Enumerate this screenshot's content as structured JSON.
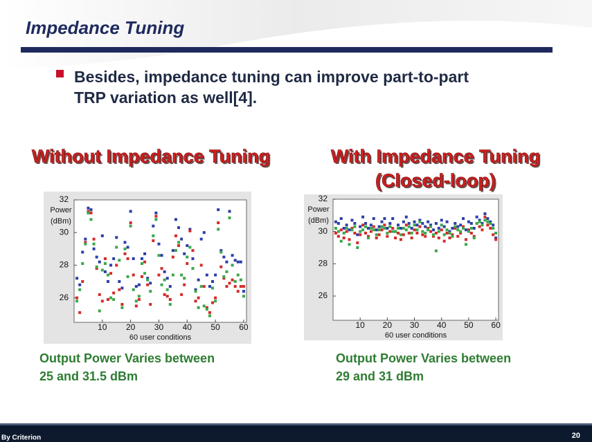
{
  "header": {
    "title": "Impedance Tuning"
  },
  "bullet": [
    "Besides, impedance tuning can improve part-to-part",
    "TRP variation as well[4]."
  ],
  "panels": [
    {
      "heading": [
        "Without Impedance Tuning"
      ],
      "caption": [
        "Output Power Varies between",
        "25 and 31.5 dBm"
      ]
    },
    {
      "heading": [
        "With Impedance Tuning",
        "(Closed-loop)"
      ],
      "caption": [
        "Output Power Varies between",
        "29 and 31 dBm"
      ]
    }
  ],
  "chart_data": [
    {
      "type": "scatter",
      "ylabel": [
        "Power",
        "(dBm)"
      ],
      "xlabel": "60 user conditions",
      "xlim": [
        0,
        61
      ],
      "xticks": [
        10,
        20,
        30,
        40,
        50,
        60
      ],
      "ylim": [
        24.5,
        32
      ],
      "yticks": [
        26,
        28,
        30,
        32
      ],
      "x": [
        1,
        2,
        3,
        4,
        5,
        6,
        7,
        8,
        9,
        10,
        11,
        12,
        13,
        14,
        15,
        16,
        17,
        18,
        19,
        20,
        21,
        22,
        23,
        24,
        25,
        26,
        27,
        28,
        29,
        30,
        31,
        32,
        33,
        34,
        35,
        36,
        37,
        38,
        39,
        40,
        41,
        42,
        43,
        44,
        45,
        46,
        47,
        48,
        49,
        50,
        51,
        52,
        53,
        54,
        55,
        56,
        57,
        58,
        59,
        60
      ],
      "series": [
        {
          "color": "#2b3fa8",
          "values": [
            27.2,
            26.8,
            28.8,
            29.6,
            31.5,
            31.4,
            29.0,
            28.5,
            28.2,
            29.8,
            27.6,
            27.0,
            28.0,
            28.4,
            29.7,
            27.0,
            26.6,
            29.4,
            29.1,
            31.3,
            28.4,
            26.7,
            26.8,
            28.4,
            28.7,
            27.2,
            26.9,
            30.4,
            31.2,
            29.3,
            28.6,
            27.6,
            27.2,
            26.7,
            28.9,
            30.8,
            30.3,
            29.6,
            28.7,
            29.2,
            30.2,
            28.4,
            26.5,
            27.1,
            29.6,
            30.0,
            27.4,
            26.7,
            27.0,
            27.4,
            31.4,
            28.9,
            28.5,
            28.2,
            31.3,
            28.6,
            28.3,
            28.2,
            28.2,
            26.4
          ]
        },
        {
          "color": "#d42a2a",
          "values": [
            26.0,
            25.1,
            27.0,
            29.4,
            31.3,
            31.2,
            29.6,
            27.8,
            26.2,
            25.8,
            28.4,
            25.9,
            27.5,
            26.3,
            28.0,
            26.5,
            25.6,
            28.7,
            28.4,
            30.6,
            27.4,
            25.5,
            25.9,
            27.3,
            28.2,
            26.8,
            25.6,
            29.5,
            31.0,
            27.4,
            27.8,
            26.2,
            26.1,
            25.9,
            28.5,
            29.8,
            29.2,
            26.2,
            26.8,
            28.1,
            30.1,
            28.9,
            25.8,
            26.0,
            28.0,
            26.7,
            25.4,
            25.1,
            25.7,
            26.0,
            30.6,
            27.9,
            27.2,
            26.7,
            26.9,
            27.1,
            26.7,
            26.4,
            26.7,
            26.7
          ]
        },
        {
          "color": "#3aa84a",
          "values": [
            25.8,
            26.5,
            28.1,
            29.3,
            31.2,
            30.8,
            29.3,
            27.9,
            25.2,
            27.7,
            28.1,
            27.4,
            26.0,
            25.9,
            29.1,
            28.3,
            25.4,
            29.0,
            27.3,
            30.4,
            26.5,
            25.8,
            26.1,
            28.1,
            27.5,
            27.1,
            26.4,
            29.8,
            30.8,
            28.6,
            26.8,
            27.1,
            26.5,
            25.6,
            27.4,
            28.9,
            29.4,
            27.4,
            27.2,
            28.5,
            29.1,
            27.8,
            26.4,
            25.4,
            26.7,
            25.5,
            25.3,
            24.9,
            26.6,
            25.8,
            30.2,
            28.8,
            27.3,
            27.6,
            30.9,
            28.0,
            27.0,
            27.4,
            27.1,
            26.1
          ]
        }
      ]
    },
    {
      "type": "scatter",
      "ylabel": [
        "Power",
        "(dBm)"
      ],
      "xlabel": "60 user conditions",
      "xlim": [
        0,
        61
      ],
      "xticks": [
        10,
        20,
        30,
        40,
        50,
        60
      ],
      "ylim": [
        24.5,
        32
      ],
      "yticks": [
        26,
        28,
        30,
        32
      ],
      "x": [
        1,
        2,
        3,
        4,
        5,
        6,
        7,
        8,
        9,
        10,
        11,
        12,
        13,
        14,
        15,
        16,
        17,
        18,
        19,
        20,
        21,
        22,
        23,
        24,
        25,
        26,
        27,
        28,
        29,
        30,
        31,
        32,
        33,
        34,
        35,
        36,
        37,
        38,
        39,
        40,
        41,
        42,
        43,
        44,
        45,
        46,
        47,
        48,
        49,
        50,
        51,
        52,
        53,
        54,
        55,
        56,
        57,
        58,
        59,
        60
      ],
      "series": [
        {
          "color": "#2b3fa8",
          "values": [
            30.6,
            30.5,
            30.8,
            30.2,
            30.4,
            30.1,
            30.7,
            30.5,
            29.8,
            30.3,
            30.9,
            30.5,
            30.2,
            30.4,
            30.8,
            30.1,
            30.3,
            30.6,
            30.8,
            30.2,
            30.5,
            30.8,
            30.0,
            30.4,
            30.2,
            30.6,
            30.9,
            30.5,
            30.2,
            30.6,
            30.4,
            30.7,
            30.5,
            30.3,
            30.6,
            30.4,
            30.1,
            30.5,
            30.2,
            30.7,
            30.3,
            30.6,
            30.0,
            30.2,
            30.5,
            30.3,
            30.4,
            30.8,
            30.1,
            30.6,
            30.5,
            30.2,
            30.9,
            30.7,
            30.5,
            31.1,
            30.8,
            30.6,
            30.4,
            29.6
          ]
        },
        {
          "color": "#d42a2a",
          "values": [
            29.9,
            29.7,
            30.1,
            29.6,
            30.0,
            29.5,
            30.2,
            29.9,
            29.3,
            29.8,
            30.4,
            29.9,
            29.7,
            30.0,
            30.3,
            29.6,
            29.8,
            30.1,
            30.4,
            29.7,
            30.0,
            30.2,
            29.6,
            29.9,
            29.5,
            29.8,
            30.4,
            29.9,
            29.6,
            30.1,
            29.9,
            30.3,
            29.8,
            29.7,
            30.2,
            30.0,
            29.7,
            29.9,
            29.6,
            30.1,
            29.4,
            29.9,
            29.6,
            29.8,
            30.2,
            29.7,
            29.9,
            30.3,
            29.5,
            30.1,
            29.9,
            29.7,
            30.5,
            30.3,
            30.1,
            30.9,
            30.4,
            30.2,
            29.8,
            29.5
          ]
        },
        {
          "color": "#3aa84a",
          "values": [
            30.2,
            30.0,
            29.4,
            29.9,
            30.2,
            29.2,
            30.1,
            30.3,
            29.0,
            30.0,
            30.1,
            30.3,
            29.6,
            30.2,
            30.1,
            29.8,
            30.1,
            30.3,
            30.2,
            29.9,
            30.3,
            30.0,
            30.0,
            30.2,
            29.8,
            30.2,
            30.1,
            30.3,
            29.9,
            30.4,
            30.1,
            30.6,
            30.0,
            29.9,
            30.1,
            30.3,
            29.8,
            28.8,
            30.0,
            30.4,
            29.8,
            30.1,
            29.9,
            29.7,
            30.3,
            30.1,
            30.0,
            30.2,
            29.2,
            30.0,
            30.2,
            29.6,
            30.5,
            30.6,
            30.4,
            30.7,
            30.6,
            30.5,
            30.2,
            29.9
          ]
        }
      ]
    }
  ],
  "footer": {
    "left": "By Criterion",
    "page": "20"
  }
}
